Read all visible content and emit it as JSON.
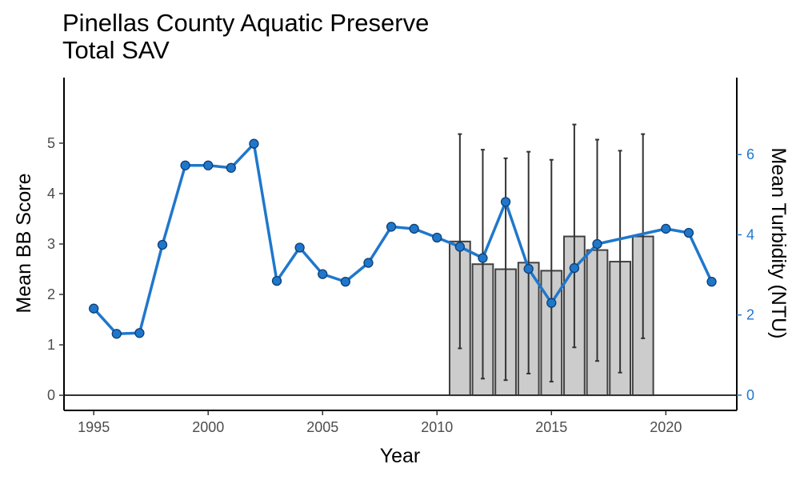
{
  "chart_data": {
    "type": "bar+line",
    "title": "Pinellas County Aquatic Preserve",
    "subtitle": "Total SAV",
    "xlabel": "Year",
    "ylabel": "Mean BB Score",
    "y2label": "Mean Turbidity (NTU)",
    "xlim": [
      1993.7,
      2023.1
    ],
    "ylim": [
      -0.3,
      6.3
    ],
    "y2lim": [
      -0.38,
      7.92
    ],
    "xticks": [
      "1995",
      "2000",
      "2005",
      "2010",
      "2015",
      "2020"
    ],
    "yticks": [
      "0",
      "1",
      "2",
      "3",
      "4",
      "5"
    ],
    "y2ticks": [
      "0",
      "2",
      "4",
      "6"
    ],
    "grid": false,
    "colors": {
      "turbidity": "#1f77cc",
      "bar_fill": "#cccccc",
      "bar_edge": "#404040"
    },
    "bars": {
      "name": "Mean BB Score",
      "x": [
        2011,
        2012,
        2013,
        2014,
        2015,
        2016,
        2017,
        2018,
        2019
      ],
      "values": [
        3.05,
        2.6,
        2.5,
        2.63,
        2.47,
        3.15,
        2.88,
        2.65,
        3.15
      ],
      "error_low": [
        0.93,
        0.33,
        0.3,
        0.43,
        0.27,
        0.95,
        0.68,
        0.45,
        1.13
      ],
      "error_high": [
        5.18,
        4.87,
        4.7,
        4.83,
        4.67,
        5.37,
        5.07,
        4.85,
        5.18
      ]
    },
    "series": [
      {
        "name": "Mean Turbidity (NTU)",
        "axis": "right",
        "x": [
          1995,
          1996,
          1997,
          1998,
          1999,
          2000,
          2001,
          2002,
          2003,
          2004,
          2005,
          2006,
          2007,
          2008,
          2009,
          2010,
          2011,
          2012,
          2013,
          2014,
          2015,
          2016,
          2017,
          2020,
          2021,
          2022
        ],
        "values": [
          2.16,
          1.53,
          1.55,
          3.75,
          5.73,
          5.73,
          5.67,
          6.27,
          2.85,
          3.68,
          3.02,
          2.83,
          3.3,
          4.2,
          4.15,
          3.93,
          3.7,
          3.42,
          4.82,
          3.15,
          2.3,
          3.17,
          3.77,
          4.15,
          4.05,
          2.83
        ]
      }
    ]
  }
}
